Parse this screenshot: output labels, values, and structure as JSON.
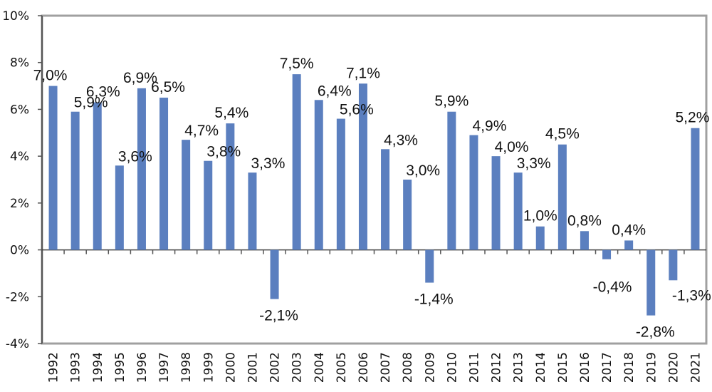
{
  "chart_data": {
    "type": "bar",
    "title": "",
    "xlabel": "",
    "ylabel": "",
    "ylim": [
      -4,
      10
    ],
    "yticks": [
      10,
      8,
      6,
      4,
      2,
      0,
      -2,
      -4
    ],
    "ytick_labels": [
      "10%",
      "8%",
      "6%",
      "4%",
      "2%",
      "0%",
      "-2%",
      "-4%"
    ],
    "grid": false,
    "categories": [
      "1992",
      "1993",
      "1994",
      "1995",
      "1996",
      "1997",
      "1998",
      "1999",
      "2000",
      "2001",
      "2002",
      "2003",
      "2004",
      "2005",
      "2006",
      "2007",
      "2008",
      "2009",
      "2010",
      "2011",
      "2012",
      "2013",
      "2014",
      "2015",
      "2016",
      "2017",
      "2018",
      "2019",
      "2020",
      "2021"
    ],
    "values": [
      7.0,
      5.9,
      6.3,
      3.6,
      6.9,
      6.5,
      4.7,
      3.8,
      5.4,
      3.3,
      -2.1,
      7.5,
      6.4,
      5.6,
      7.1,
      4.3,
      3.0,
      -1.4,
      5.9,
      4.9,
      4.0,
      3.3,
      1.0,
      4.5,
      0.8,
      -0.4,
      0.4,
      -2.8,
      -1.3,
      5.2
    ],
    "data_labels": [
      "7,0%",
      "5,9%",
      "6,3%",
      "3,6%",
      "6,9%",
      "6,5%",
      "4,7%",
      "3,8%",
      "5,4%",
      "3,3%",
      "-2,1%",
      "7,5%",
      "6,4%",
      "5,6%",
      "7,1%",
      "4,3%",
      "3,0%",
      "-1,4%",
      "5,9%",
      "4,9%",
      "4,0%",
      "3,3%",
      "1,0%",
      "4,5%",
      "0,8%",
      "-0,4%",
      "0,4%",
      "-2,8%",
      "-1,3%",
      "5,2%"
    ],
    "bar_color": "#5b7fbf",
    "legend": "none"
  }
}
